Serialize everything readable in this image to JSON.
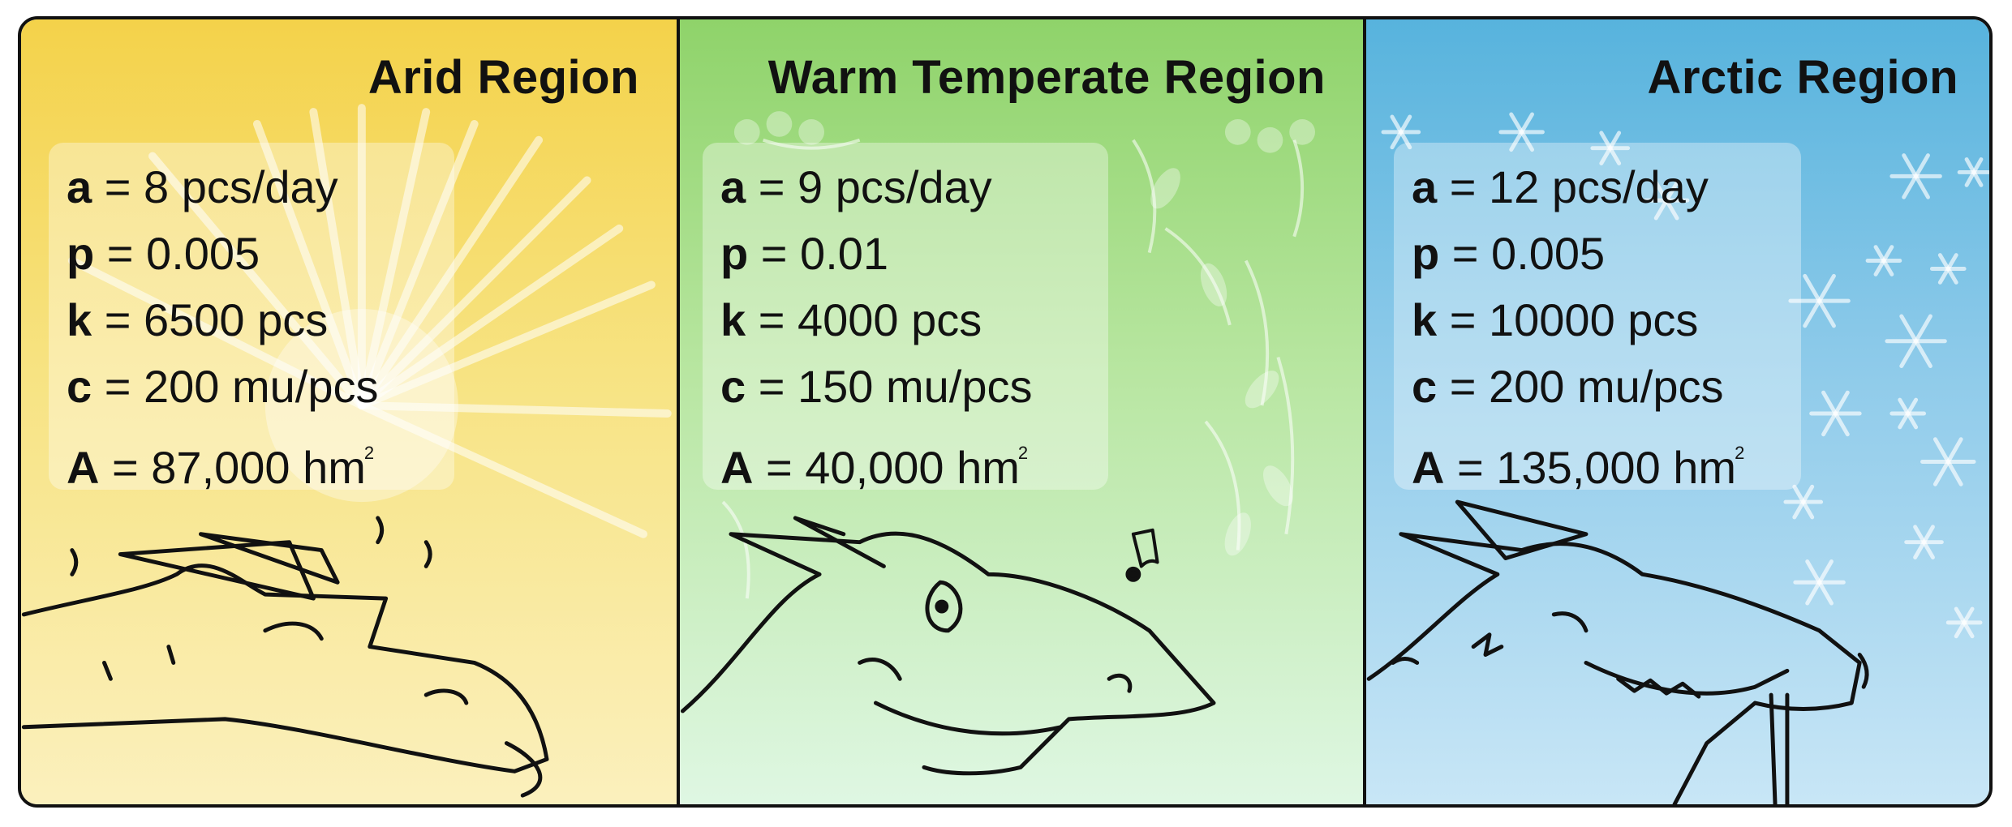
{
  "panels": [
    {
      "title": "Arid Region",
      "theme": "sun",
      "color": "#f4d24a",
      "params": [
        {
          "name": "a",
          "eq": " = ",
          "value": "8 pcs/day",
          "sup": ""
        },
        {
          "name": "p",
          "eq": " = ",
          "value": "0.005",
          "sup": ""
        },
        {
          "name": "k",
          "eq": " = ",
          "value": "6500 pcs",
          "sup": ""
        },
        {
          "name": "c",
          "eq": " = ",
          "value": "200 mu/pcs",
          "sup": ""
        },
        {
          "name": "A",
          "eq": " = ",
          "value": "87,000 hm",
          "sup": "2"
        }
      ],
      "illustration": "dragon-icon"
    },
    {
      "title": "Warm Temperate Region",
      "theme": "leaves",
      "color": "#8fd36a",
      "params": [
        {
          "name": "a",
          "eq": " = ",
          "value": "9 pcs/day",
          "sup": ""
        },
        {
          "name": "p",
          "eq": " = ",
          "value": "0.01",
          "sup": ""
        },
        {
          "name": "k",
          "eq": " = ",
          "value": "4000 pcs",
          "sup": ""
        },
        {
          "name": "c",
          "eq": " = ",
          "value": "150 mu/pcs",
          "sup": ""
        },
        {
          "name": "A",
          "eq": " = ",
          "value": "40,000 hm",
          "sup": "2"
        }
      ],
      "illustration": "dragon-icon"
    },
    {
      "title": "Arctic Region",
      "theme": "snow",
      "color": "#57b3dd",
      "params": [
        {
          "name": "a",
          "eq": " = ",
          "value": "12 pcs/day",
          "sup": ""
        },
        {
          "name": "p",
          "eq": " = ",
          "value": "0.005",
          "sup": ""
        },
        {
          "name": "k",
          "eq": " = ",
          "value": "10000 pcs",
          "sup": ""
        },
        {
          "name": "c",
          "eq": " = ",
          "value": "200 mu/pcs",
          "sup": ""
        },
        {
          "name": "A",
          "eq": " = ",
          "value": "135,000 hm",
          "sup": "2"
        }
      ],
      "illustration": "dragon-icon"
    }
  ]
}
